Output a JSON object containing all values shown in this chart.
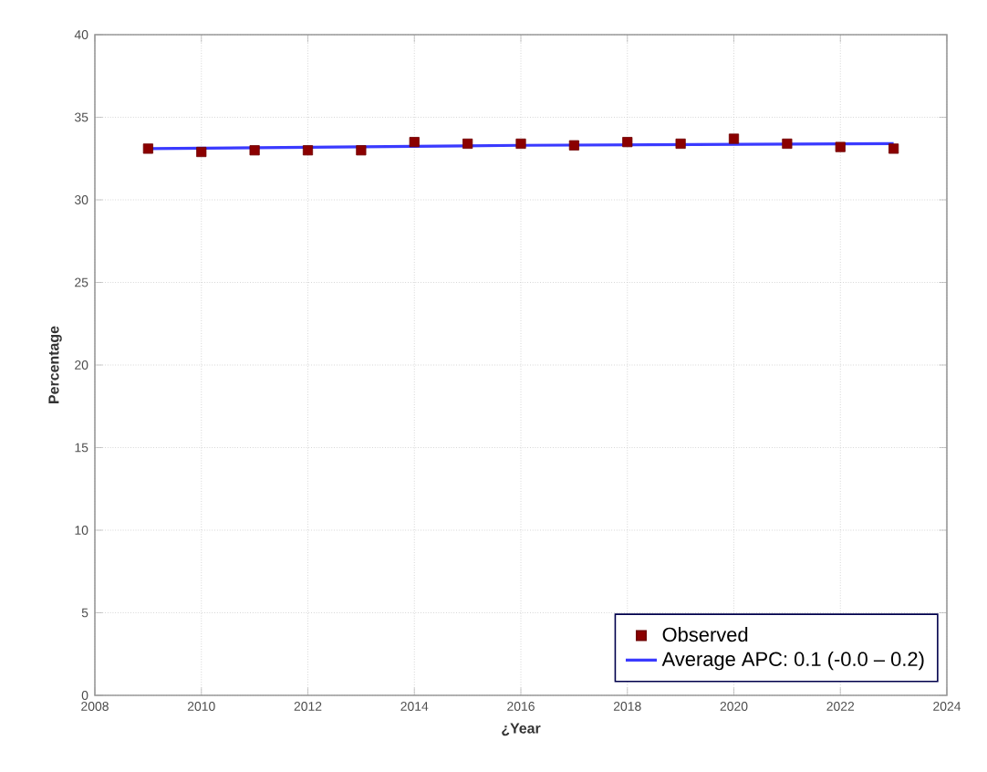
{
  "chart_data": {
    "type": "scatter",
    "xlabel": "¿Year",
    "ylabel": "Percentage",
    "xlim": [
      2008,
      2024
    ],
    "xticks": [
      2008,
      2010,
      2012,
      2014,
      2016,
      2018,
      2020,
      2022,
      2024
    ],
    "ylim": [
      0,
      40
    ],
    "yticks": [
      0,
      5,
      10,
      15,
      20,
      25,
      30,
      35,
      40
    ],
    "grid": true,
    "legend": "bottom right",
    "series": [
      {
        "name": "Observed",
        "marker": "square",
        "color": "#8b0000",
        "x": [
          2009,
          2010,
          2011,
          2012,
          2013,
          2014,
          2015,
          2016,
          2017,
          2018,
          2019,
          2020,
          2021,
          2022,
          2023
        ],
        "values": [
          33.1,
          32.9,
          33.0,
          33.0,
          33.0,
          33.5,
          33.4,
          33.4,
          33.3,
          33.5,
          33.4,
          33.7,
          33.4,
          33.2,
          33.1
        ]
      },
      {
        "name": "Average APC: 0.1 (-0.0 – 0.2)",
        "type": "line",
        "marker": "none",
        "color": "#3a3aff",
        "x": [
          2009,
          2016,
          2023
        ],
        "values": [
          33.1,
          33.3,
          33.4
        ]
      }
    ]
  }
}
